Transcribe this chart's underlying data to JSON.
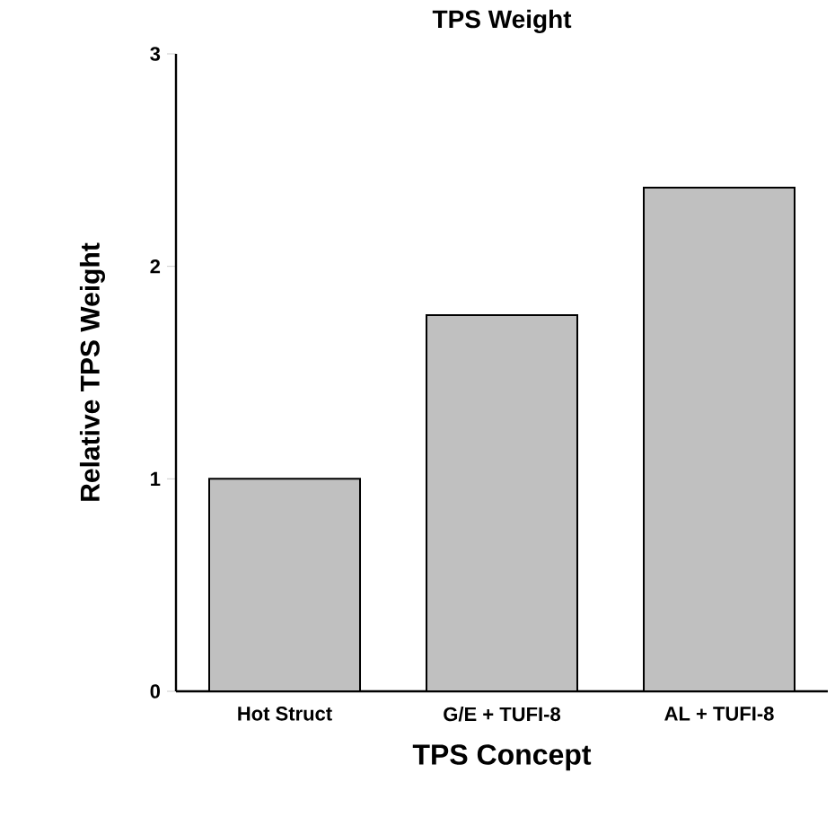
{
  "chart_data": {
    "type": "bar",
    "title": "TPS Weight",
    "xlabel": "TPS Concept",
    "ylabel": "Relative TPS Weight",
    "categories": [
      "Hot Struct",
      "G/E + TUFI-8",
      "AL + TUFI-8"
    ],
    "values": [
      1.0,
      1.77,
      2.37
    ],
    "color": "#c0c0c0",
    "ylim": [
      0,
      3
    ],
    "yticks": [
      0,
      1,
      2,
      3
    ]
  }
}
